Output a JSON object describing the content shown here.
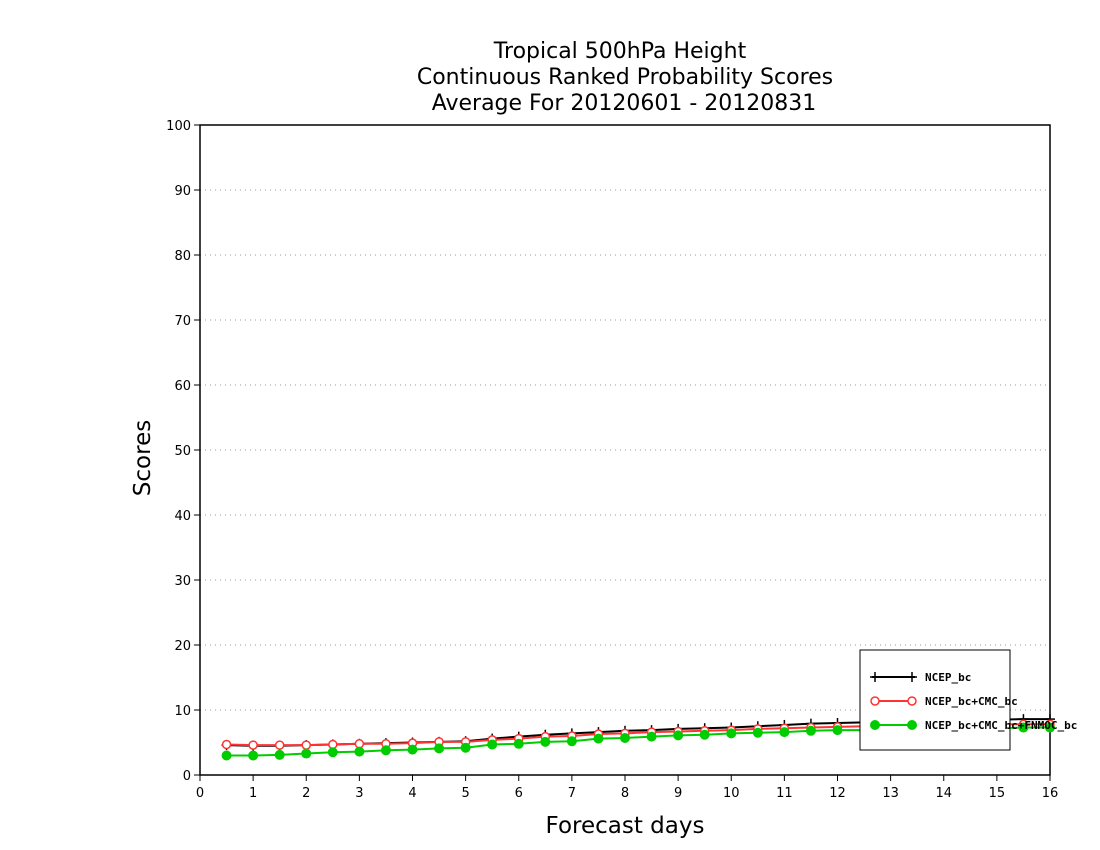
{
  "chart_data": {
    "type": "line",
    "title_lines": [
      "Tropical 500hPa Height",
      "Continuous Ranked Probability Scores",
      "Average For 20120601 - 20120831"
    ],
    "xlabel": "Forecast days",
    "ylabel": "Scores",
    "xlim": [
      0,
      16
    ],
    "ylim": [
      0,
      100
    ],
    "x_ticks": [
      0,
      1,
      2,
      3,
      4,
      5,
      6,
      7,
      8,
      9,
      10,
      11,
      12,
      13,
      14,
      15,
      16
    ],
    "y_ticks": [
      0,
      10,
      20,
      30,
      40,
      50,
      60,
      70,
      80,
      90,
      100
    ],
    "grid": "horizontal-dotted",
    "legend_position": "bottom-right",
    "x": [
      0.5,
      1,
      1.5,
      2,
      2.5,
      3,
      3.5,
      4,
      4.5,
      5,
      5.5,
      6,
      6.5,
      7,
      7.5,
      8,
      8.5,
      9,
      9.5,
      10,
      10.5,
      11,
      11.5,
      12,
      12.5,
      13,
      13.5,
      14,
      14.5,
      15,
      15.5,
      16
    ],
    "series": [
      {
        "name": "NCEP_bc",
        "color": "#000000",
        "marker": "plus",
        "values": [
          4.6,
          4.5,
          4.5,
          4.6,
          4.7,
          4.8,
          4.9,
          5.0,
          5.1,
          5.2,
          5.6,
          5.9,
          6.2,
          6.4,
          6.6,
          6.8,
          6.9,
          7.1,
          7.2,
          7.3,
          7.5,
          7.7,
          7.9,
          8.0,
          8.1,
          8.2,
          8.3,
          8.4,
          8.5,
          8.5,
          8.6,
          8.6
        ]
      },
      {
        "name": "NCEP_bc+CMC_bc",
        "color": "#ff3333",
        "marker": "open-circle",
        "values": [
          4.7,
          4.6,
          4.6,
          4.6,
          4.7,
          4.8,
          4.8,
          4.9,
          5.1,
          5.1,
          5.4,
          5.6,
          5.9,
          6.0,
          6.3,
          6.4,
          6.6,
          6.7,
          6.8,
          6.9,
          7.1,
          7.2,
          7.3,
          7.4,
          7.5,
          7.6,
          7.6,
          7.7,
          7.7,
          7.8,
          7.8,
          7.8
        ]
      },
      {
        "name": "NCEP_bc+CMC_bc+FNMOC_bc",
        "color": "#00cc00",
        "marker": "filled-circle",
        "values": [
          3.0,
          3.0,
          3.1,
          3.3,
          3.5,
          3.6,
          3.8,
          3.9,
          4.1,
          4.2,
          4.7,
          4.8,
          5.1,
          5.2,
          5.6,
          5.7,
          5.9,
          6.1,
          6.2,
          6.4,
          6.5,
          6.6,
          6.8,
          6.9,
          6.9,
          7.0,
          7.1,
          7.1,
          7.2,
          7.2,
          7.3,
          7.3
        ]
      }
    ]
  }
}
